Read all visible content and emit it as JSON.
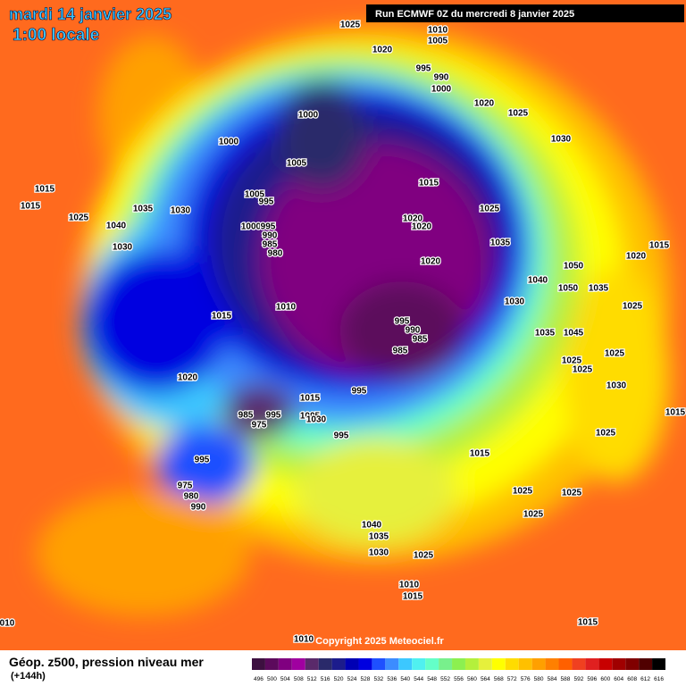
{
  "header": {
    "title": "mardi 14 janvier 2025",
    "subtitle": "1:00 locale",
    "run": "Run ECMWF 0Z du mercredi 8 janvier 2025"
  },
  "footer": {
    "field": "Géop. z500, pression niveau mer",
    "lead": "(+144h)",
    "copyright": "Copyright 2025 Meteociel.fr"
  },
  "legend": {
    "values": [
      496,
      500,
      504,
      508,
      512,
      516,
      520,
      524,
      528,
      532,
      536,
      540,
      544,
      548,
      552,
      556,
      560,
      564,
      568,
      572,
      576,
      580,
      584,
      588,
      592,
      596,
      600,
      604,
      608,
      612,
      616
    ],
    "colors": [
      "#3d1040",
      "#5c0a5c",
      "#800080",
      "#a000a0",
      "#5a2a6a",
      "#2a2a6a",
      "#1c1c8c",
      "#0000b4",
      "#0000e0",
      "#1e50ff",
      "#3c8cff",
      "#3cc8ff",
      "#50f0f0",
      "#64ffc8",
      "#78f08c",
      "#8cf050",
      "#b4f03c",
      "#e6f03c",
      "#ffff00",
      "#ffdc00",
      "#ffc000",
      "#ffa000",
      "#ff8000",
      "#ff6000",
      "#f04020",
      "#e02020",
      "#c80000",
      "#a00000",
      "#800000",
      "#500000",
      "#000000"
    ]
  },
  "isobars": [
    "1025",
    "1010",
    "1005",
    "1020",
    "995",
    "990",
    "1000",
    "1020",
    "1025",
    "1000",
    "1030",
    "1000",
    "1005",
    "1015",
    "1015",
    "1015",
    "1005",
    "995",
    "1035",
    "1030",
    "1025",
    "1025",
    "1020",
    "1020",
    "1000",
    "995",
    "1040",
    "990",
    "985",
    "1035",
    "1030",
    "980",
    "1015",
    "1020",
    "1020",
    "1050",
    "1040",
    "1050",
    "1035",
    "1030",
    "1025",
    "1010",
    "1015",
    "995",
    "990",
    "985",
    "1035",
    "1045",
    "985",
    "1025",
    "1025",
    "1025",
    "1020",
    "995",
    "1030",
    "1015",
    "985",
    "995",
    "1005",
    "1030",
    "975",
    "1015",
    "995",
    "1025",
    "1015",
    "995",
    "975",
    "980",
    "990",
    "1025",
    "1025",
    "1025",
    "1040",
    "1035",
    "1030",
    "1025",
    "1010",
    "1015",
    "1015",
    "010",
    "1010"
  ]
}
